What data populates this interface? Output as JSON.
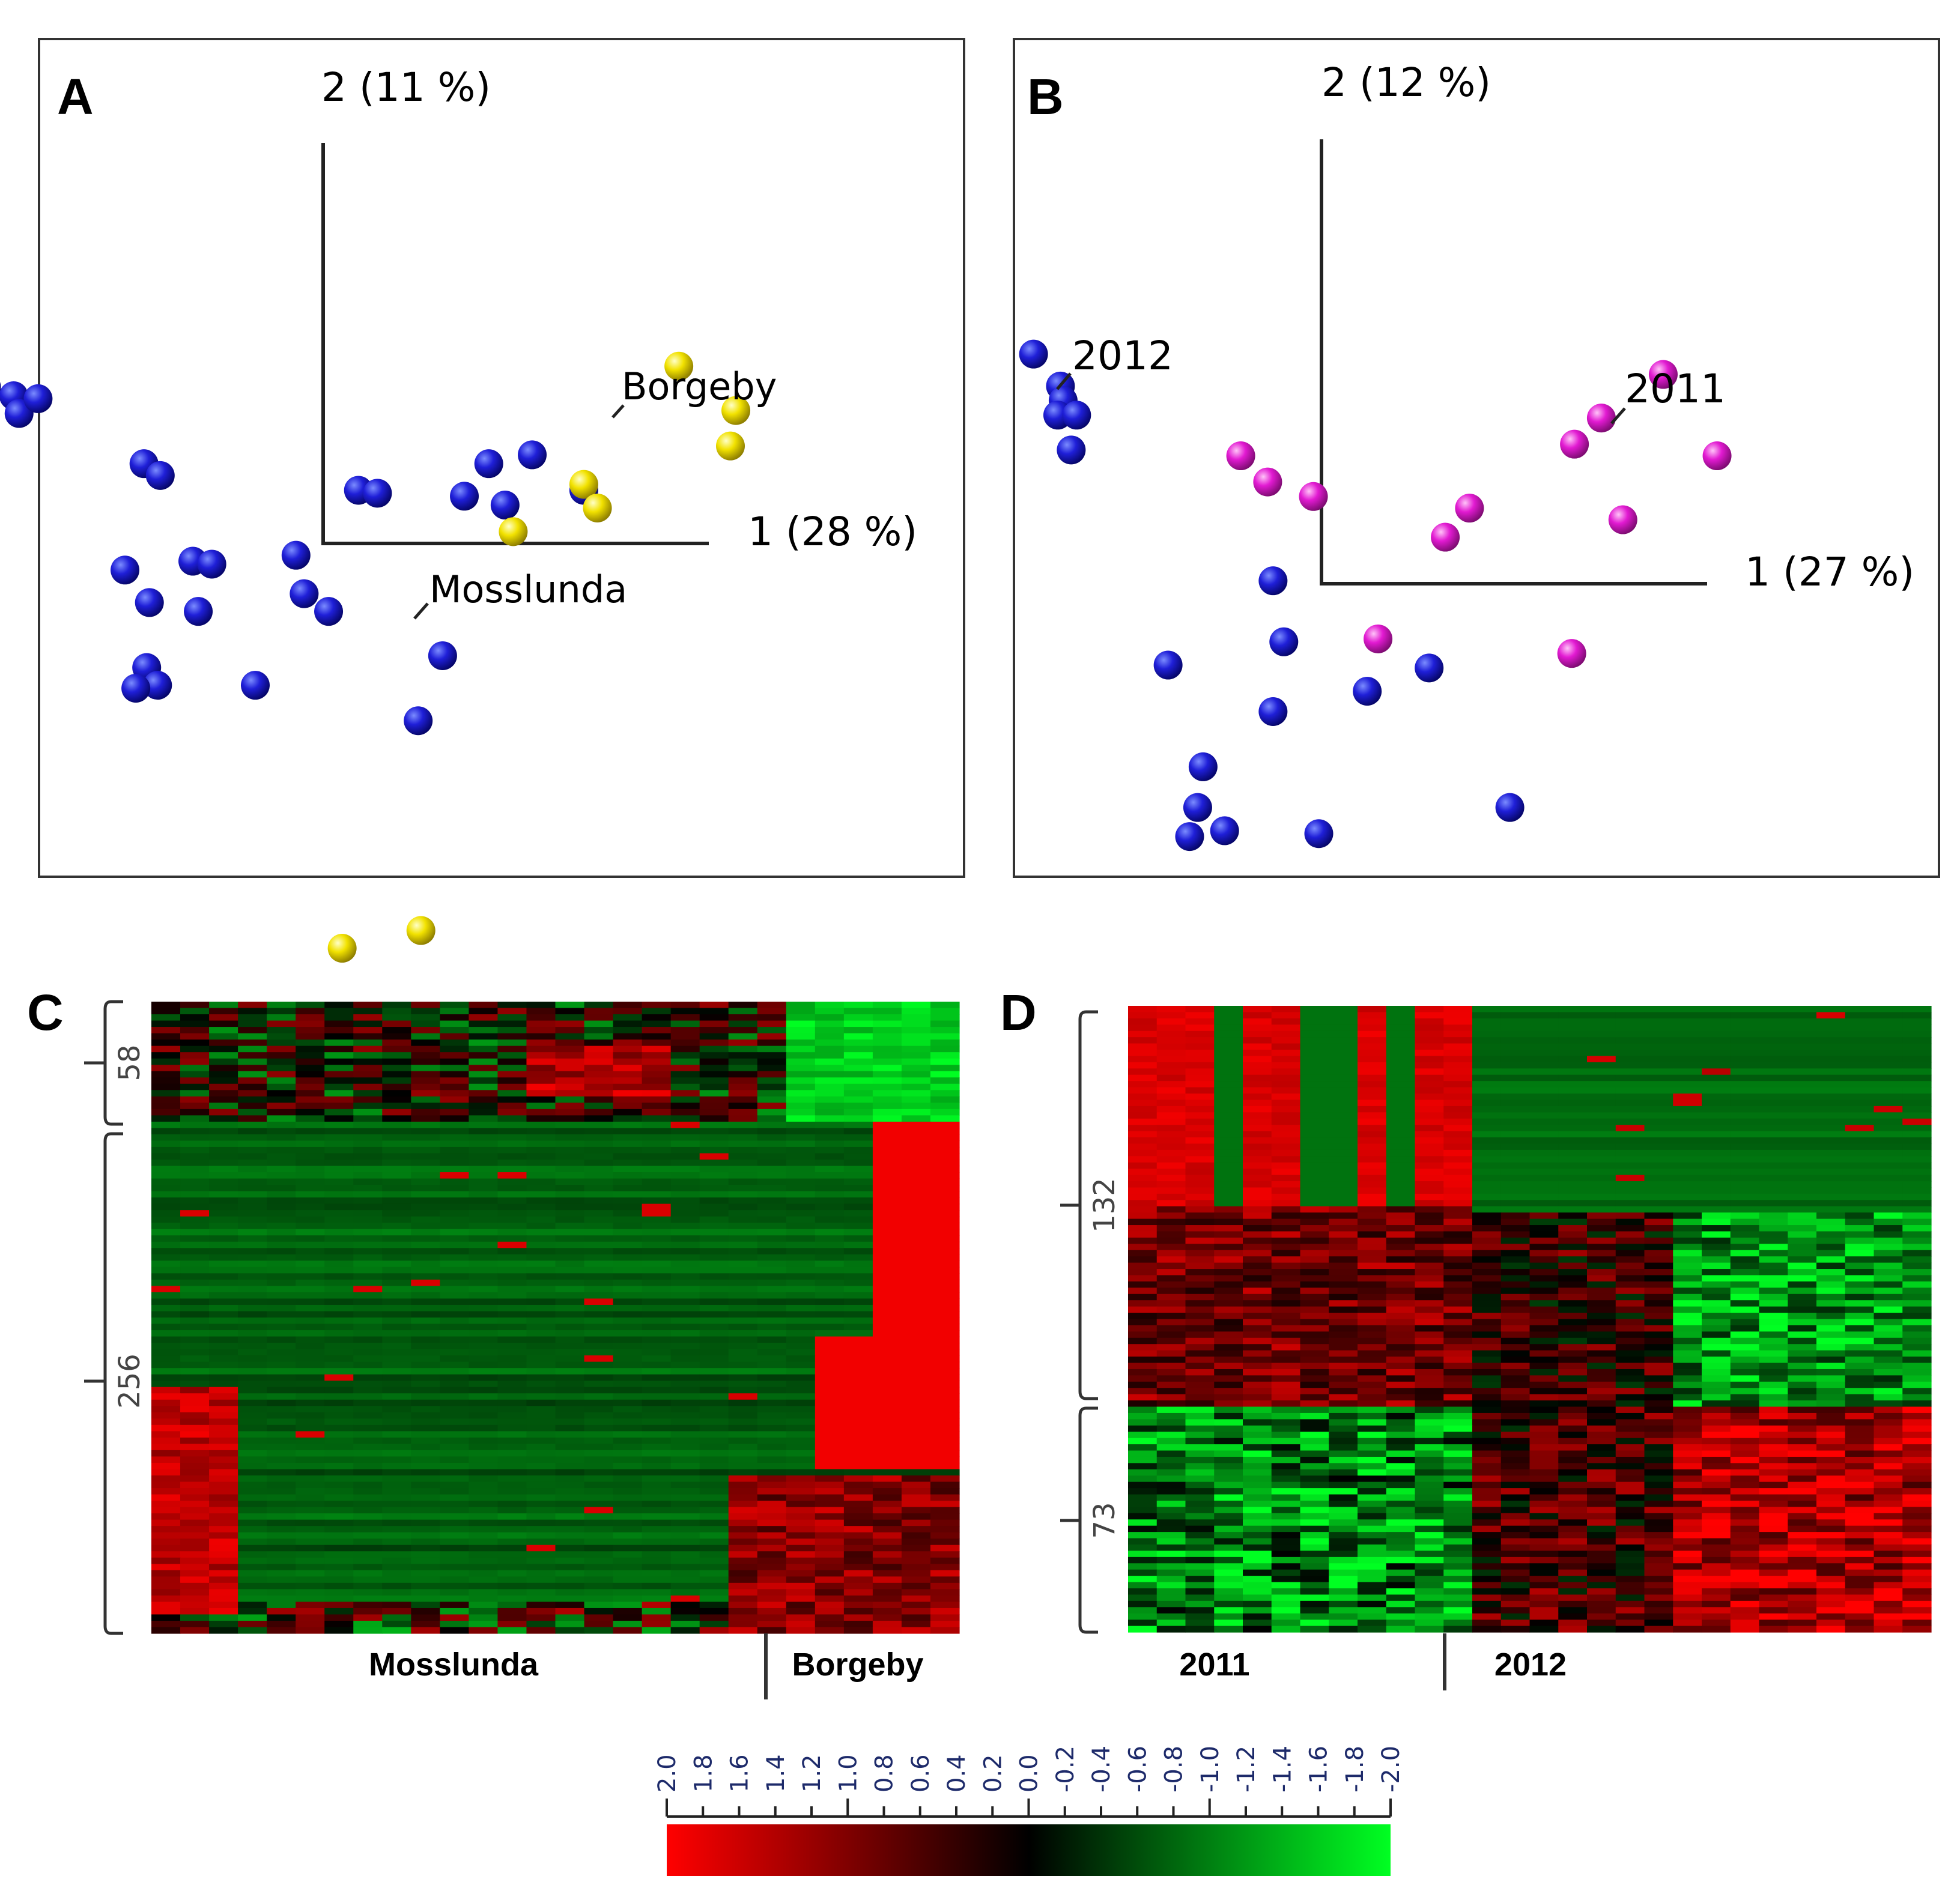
{
  "colors": {
    "blue": "#1a16c8",
    "yellow": "#f2e200",
    "magenta": "#e21ad2",
    "red": "#ff0000",
    "green": "#00ff22",
    "dark": "#000000"
  },
  "chart_data": [
    {
      "panel": "A",
      "type": "scatter",
      "title": "A",
      "xlabel": "1 (28 %)",
      "ylabel": "2 (11 %)",
      "xlim": [
        -1.4,
        2.0
      ],
      "ylim": [
        -1.4,
        1.8
      ],
      "annotations": [
        {
          "text": "Borgeby",
          "x": 1.56,
          "y": 0.54
        },
        {
          "text": "Mosslunda",
          "x": 0.48,
          "y": -0.31
        }
      ],
      "series": [
        {
          "name": "Mosslunda",
          "color": "blue",
          "points": [
            [
              -1.24,
              0.53
            ],
            [
              -1.14,
              0.5
            ],
            [
              -1.12,
              0.44
            ],
            [
              -1.05,
              0.49
            ],
            [
              -0.66,
              0.27
            ],
            [
              -0.6,
              0.23
            ],
            [
              -0.73,
              -0.09
            ],
            [
              -0.48,
              -0.06
            ],
            [
              -0.41,
              -0.07
            ],
            [
              -0.64,
              -0.2
            ],
            [
              -0.46,
              -0.23
            ],
            [
              -0.65,
              -0.42
            ],
            [
              -0.61,
              -0.48
            ],
            [
              -0.69,
              -0.49
            ],
            [
              -0.25,
              -0.48
            ],
            [
              -0.1,
              -0.04
            ],
            [
              -0.07,
              -0.17
            ],
            [
              0.02,
              -0.23
            ],
            [
              0.13,
              0.18
            ],
            [
              0.2,
              0.17
            ],
            [
              0.52,
              0.16
            ],
            [
              0.61,
              0.27
            ],
            [
              0.67,
              0.13
            ],
            [
              0.77,
              0.3
            ],
            [
              0.96,
              0.18
            ],
            [
              0.44,
              -0.38
            ],
            [
              0.35,
              -0.6
            ]
          ]
        },
        {
          "name": "Borgeby",
          "color": "yellow",
          "points": [
            [
              1.31,
              0.6
            ],
            [
              1.52,
              0.45
            ],
            [
              1.5,
              0.33
            ],
            [
              0.96,
              0.2
            ],
            [
              1.01,
              0.12
            ],
            [
              0.7,
              0.04
            ],
            [
              0.36,
              -1.31
            ],
            [
              0.07,
              -1.37
            ]
          ]
        }
      ]
    },
    {
      "panel": "B",
      "type": "scatter",
      "title": "B",
      "xlabel": "1 (27 %)",
      "ylabel": "2 (12 %)",
      "xlim": [
        -1.2,
        1.6
      ],
      "ylim": [
        -1.0,
        1.8
      ],
      "annotations": [
        {
          "text": "2012",
          "x": -1.02,
          "y": 0.86
        },
        {
          "text": "2011",
          "x": 1.1,
          "y": 0.72
        }
      ],
      "series": [
        {
          "name": "2012",
          "color": "blue",
          "points": [
            [
              -1.07,
              0.79
            ],
            [
              -0.97,
              0.68
            ],
            [
              -0.96,
              0.63
            ],
            [
              -0.98,
              0.58
            ],
            [
              -0.91,
              0.58
            ],
            [
              -0.93,
              0.46
            ],
            [
              -0.18,
              0.01
            ],
            [
              -0.14,
              -0.2
            ],
            [
              -0.57,
              -0.28
            ],
            [
              -0.18,
              -0.44
            ],
            [
              0.17,
              -0.37
            ],
            [
              0.4,
              -0.29
            ],
            [
              -0.44,
              -0.63
            ],
            [
              -0.46,
              -0.77
            ],
            [
              -0.36,
              -0.85
            ],
            [
              -0.49,
              -0.87
            ],
            [
              -0.01,
              -0.86
            ],
            [
              0.7,
              -0.77
            ]
          ]
        },
        {
          "name": "2011",
          "color": "magenta",
          "points": [
            [
              1.27,
              0.72
            ],
            [
              1.04,
              0.57
            ],
            [
              0.94,
              0.48
            ],
            [
              1.47,
              0.44
            ],
            [
              1.12,
              0.22
            ],
            [
              0.55,
              0.26
            ],
            [
              0.46,
              0.16
            ],
            [
              -0.3,
              0.44
            ],
            [
              -0.2,
              0.35
            ],
            [
              -0.03,
              0.3
            ],
            [
              0.21,
              -0.19
            ],
            [
              0.93,
              -0.24
            ]
          ]
        }
      ]
    },
    {
      "panel": "C",
      "type": "heatmap",
      "title": "C",
      "groups": [
        "Mosslunda",
        "Borgeby"
      ],
      "row_clusters": [
        {
          "label": "58"
        },
        {
          "label": "256"
        }
      ]
    },
    {
      "panel": "D",
      "type": "heatmap",
      "title": "D",
      "groups": [
        "2011",
        "2012"
      ],
      "row_clusters": [
        {
          "label": "132"
        },
        {
          "label": "73"
        }
      ]
    },
    {
      "type": "colorbar",
      "ticks": [
        "2.0",
        "1.8",
        "1.6",
        "1.4",
        "1.2",
        "1.0",
        "0.8",
        "0.6",
        "0.4",
        "0.2",
        "0.0",
        "-0.2",
        "-0.4",
        "-0.6",
        "-0.8",
        "-1.0",
        "-1.2",
        "-1.4",
        "-1.6",
        "-1.8",
        "-2.0"
      ],
      "range": [
        2.0,
        -2.0
      ],
      "colors": [
        "#ff0000",
        "#000000",
        "#00ff22"
      ]
    }
  ]
}
